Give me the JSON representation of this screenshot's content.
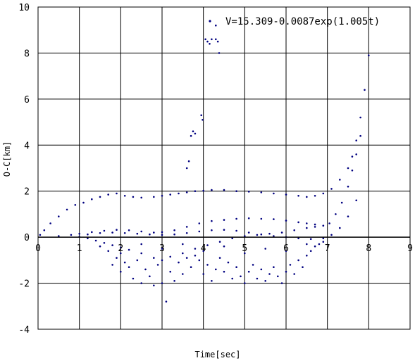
{
  "chart_data": {
    "type": "scatter",
    "title": "",
    "xlabel": "Time[sec]",
    "ylabel": "O-C[km]",
    "xlim": [
      0,
      9
    ],
    "ylim": [
      -4,
      10
    ],
    "xticks": [
      0,
      1,
      2,
      3,
      4,
      5,
      6,
      7,
      8,
      9
    ],
    "yticks": [
      -4,
      -2,
      0,
      2,
      4,
      6,
      8,
      10
    ],
    "grid": true,
    "legend": {
      "position": "top-right",
      "entries": [
        {
          "label": "V=15.309-0.0087exp(1.005t)"
        }
      ]
    },
    "marker_color": "#000080",
    "series": [
      {
        "points": [
          [
            0.05,
            0.1
          ],
          [
            0.15,
            0.3
          ],
          [
            0.3,
            0.6
          ],
          [
            0.5,
            0.9
          ],
          [
            0.7,
            1.2
          ],
          [
            0.9,
            1.4
          ],
          [
            1.1,
            1.5
          ],
          [
            1.3,
            1.65
          ],
          [
            1.5,
            1.75
          ],
          [
            1.7,
            1.85
          ],
          [
            1.9,
            1.9
          ],
          [
            2.1,
            1.8
          ],
          [
            2.3,
            1.75
          ],
          [
            2.5,
            1.72
          ],
          [
            2.8,
            1.75
          ],
          [
            3.0,
            1.8
          ],
          [
            3.2,
            1.85
          ],
          [
            3.4,
            1.9
          ],
          [
            3.6,
            1.95
          ],
          [
            3.8,
            2.0
          ],
          [
            4.0,
            2.02
          ],
          [
            4.2,
            2.05
          ],
          [
            4.5,
            2.05
          ],
          [
            4.8,
            2.0
          ],
          [
            5.1,
            1.98
          ],
          [
            5.4,
            1.95
          ],
          [
            5.7,
            1.9
          ],
          [
            6.0,
            1.85
          ],
          [
            6.3,
            1.8
          ],
          [
            6.5,
            1.75
          ],
          [
            6.7,
            1.8
          ],
          [
            6.9,
            1.9
          ],
          [
            7.1,
            2.1
          ],
          [
            7.3,
            2.5
          ],
          [
            7.5,
            3.0
          ],
          [
            7.6,
            3.5
          ],
          [
            7.7,
            4.2
          ],
          [
            7.8,
            5.2
          ],
          [
            7.9,
            6.4
          ],
          [
            8.0,
            7.9
          ]
        ]
      },
      {
        "points": [
          [
            0.5,
            0.05
          ],
          [
            0.8,
            0.1
          ],
          [
            1.0,
            0.15
          ],
          [
            1.3,
            0.22
          ],
          [
            1.6,
            0.28
          ],
          [
            1.9,
            0.32
          ],
          [
            2.2,
            0.3
          ],
          [
            2.5,
            0.25
          ],
          [
            2.8,
            0.2
          ],
          [
            3.0,
            0.22
          ],
          [
            3.3,
            0.3
          ],
          [
            3.6,
            0.45
          ],
          [
            3.9,
            0.6
          ],
          [
            4.2,
            0.7
          ],
          [
            4.5,
            0.75
          ],
          [
            4.8,
            0.8
          ],
          [
            5.1,
            0.82
          ],
          [
            5.4,
            0.8
          ],
          [
            5.7,
            0.78
          ],
          [
            6.0,
            0.72
          ],
          [
            6.3,
            0.65
          ],
          [
            6.5,
            0.6
          ],
          [
            6.7,
            0.55
          ],
          [
            6.9,
            0.5
          ],
          [
            7.05,
            0.6
          ],
          [
            7.2,
            1.0
          ],
          [
            7.35,
            1.5
          ],
          [
            7.5,
            2.2
          ],
          [
            7.6,
            2.9
          ],
          [
            7.7,
            3.6
          ],
          [
            7.8,
            4.4
          ]
        ]
      },
      {
        "points": [
          [
            1.0,
            0.02
          ],
          [
            1.2,
            -0.05
          ],
          [
            1.4,
            -0.15
          ],
          [
            1.6,
            -0.25
          ],
          [
            1.8,
            -0.35
          ],
          [
            2.0,
            -0.45
          ],
          [
            2.2,
            -0.55
          ],
          [
            2.5,
            -0.7
          ],
          [
            2.8,
            -0.9
          ],
          [
            3.0,
            -1.0
          ],
          [
            3.2,
            -0.85
          ],
          [
            3.5,
            -0.7
          ],
          [
            3.8,
            -0.5
          ],
          [
            4.1,
            -0.35
          ],
          [
            4.4,
            -0.2
          ],
          [
            4.7,
            -0.05
          ],
          [
            5.0,
            0.05
          ],
          [
            5.3,
            0.1
          ],
          [
            5.6,
            0.15
          ],
          [
            5.9,
            0.2
          ],
          [
            6.2,
            0.3
          ],
          [
            6.5,
            0.4
          ],
          [
            6.7,
            0.45
          ],
          [
            6.9,
            0.5
          ]
        ]
      },
      {
        "points": [
          [
            1.2,
            0.12
          ],
          [
            1.5,
            0.18
          ],
          [
            1.8,
            0.2
          ],
          [
            2.1,
            0.18
          ],
          [
            2.4,
            0.15
          ],
          [
            2.7,
            0.12
          ],
          [
            3.0,
            0.1
          ],
          [
            3.3,
            0.12
          ],
          [
            3.6,
            0.18
          ],
          [
            3.9,
            0.25
          ],
          [
            4.2,
            0.3
          ],
          [
            4.5,
            0.32
          ],
          [
            4.8,
            0.28
          ],
          [
            5.1,
            0.2
          ],
          [
            5.4,
            0.12
          ],
          [
            5.7,
            0.05
          ],
          [
            6.0,
            0.0
          ],
          [
            6.3,
            -0.05
          ],
          [
            6.6,
            -0.08
          ],
          [
            6.9,
            -0.05
          ],
          [
            7.1,
            0.1
          ],
          [
            7.3,
            0.4
          ],
          [
            7.5,
            0.9
          ],
          [
            7.7,
            1.6
          ]
        ]
      },
      {
        "points": [
          [
            1.7,
            -0.6
          ],
          [
            1.8,
            -1.2
          ],
          [
            1.9,
            -0.9
          ],
          [
            2.0,
            -1.5
          ],
          [
            2.1,
            -1.1
          ],
          [
            2.2,
            -1.3
          ],
          [
            2.3,
            -1.8
          ],
          [
            2.4,
            -1.0
          ],
          [
            2.5,
            -2.0
          ],
          [
            2.6,
            -1.4
          ],
          [
            2.7,
            -1.7
          ],
          [
            2.8,
            -2.1
          ],
          [
            2.9,
            -1.2
          ],
          [
            3.0,
            -2.0
          ],
          [
            3.1,
            -2.8
          ],
          [
            3.2,
            -1.5
          ],
          [
            3.3,
            -1.9
          ],
          [
            3.4,
            -1.1
          ],
          [
            3.5,
            -1.6
          ],
          [
            3.6,
            -0.9
          ],
          [
            3.7,
            -1.3
          ],
          [
            3.8,
            -0.8
          ],
          [
            3.9,
            -1.0
          ],
          [
            4.0,
            -1.6
          ],
          [
            4.1,
            -1.2
          ],
          [
            4.2,
            -1.9
          ],
          [
            4.3,
            -1.4
          ],
          [
            4.4,
            -0.9
          ],
          [
            4.5,
            -1.5
          ],
          [
            4.6,
            -1.1
          ],
          [
            4.7,
            -1.8
          ],
          [
            4.8,
            -1.3
          ],
          [
            4.9,
            -1.7
          ],
          [
            5.0,
            -2.0
          ],
          [
            5.1,
            -1.5
          ],
          [
            5.2,
            -1.2
          ],
          [
            5.3,
            -1.8
          ],
          [
            5.4,
            -1.4
          ],
          [
            5.5,
            -1.9
          ],
          [
            5.6,
            -1.6
          ],
          [
            5.7,
            -1.3
          ],
          [
            5.8,
            -1.7
          ],
          [
            5.9,
            -2.0
          ],
          [
            6.0,
            -1.5
          ],
          [
            6.1,
            -1.2
          ],
          [
            6.2,
            -1.6
          ],
          [
            6.3,
            -1.0
          ],
          [
            6.4,
            -1.3
          ],
          [
            6.5,
            -0.8
          ],
          [
            6.6,
            -0.6
          ],
          [
            6.7,
            -0.4
          ],
          [
            6.8,
            -0.3
          ],
          [
            6.9,
            -0.2
          ],
          [
            1.5,
            -0.4
          ],
          [
            2.0,
            -0.7
          ],
          [
            2.5,
            -0.3
          ],
          [
            3.0,
            -0.5
          ],
          [
            3.5,
            -0.3
          ],
          [
            4.0,
            -0.6
          ],
          [
            4.5,
            -0.4
          ],
          [
            5.0,
            -0.7
          ],
          [
            5.5,
            -0.5
          ],
          [
            6.0,
            -0.6
          ],
          [
            6.5,
            -0.3
          ]
        ]
      },
      {
        "points": [
          [
            3.6,
            3.0
          ],
          [
            3.65,
            3.3
          ],
          [
            3.7,
            4.4
          ],
          [
            3.75,
            4.6
          ],
          [
            3.8,
            4.5
          ],
          [
            3.95,
            5.3
          ],
          [
            3.98,
            5.1
          ],
          [
            4.05,
            8.6
          ],
          [
            4.1,
            8.5
          ],
          [
            4.15,
            8.4
          ],
          [
            4.2,
            8.6
          ],
          [
            4.3,
            8.6
          ],
          [
            4.35,
            8.5
          ],
          [
            4.38,
            8.0
          ],
          [
            4.3,
            9.2
          ]
        ]
      }
    ]
  }
}
